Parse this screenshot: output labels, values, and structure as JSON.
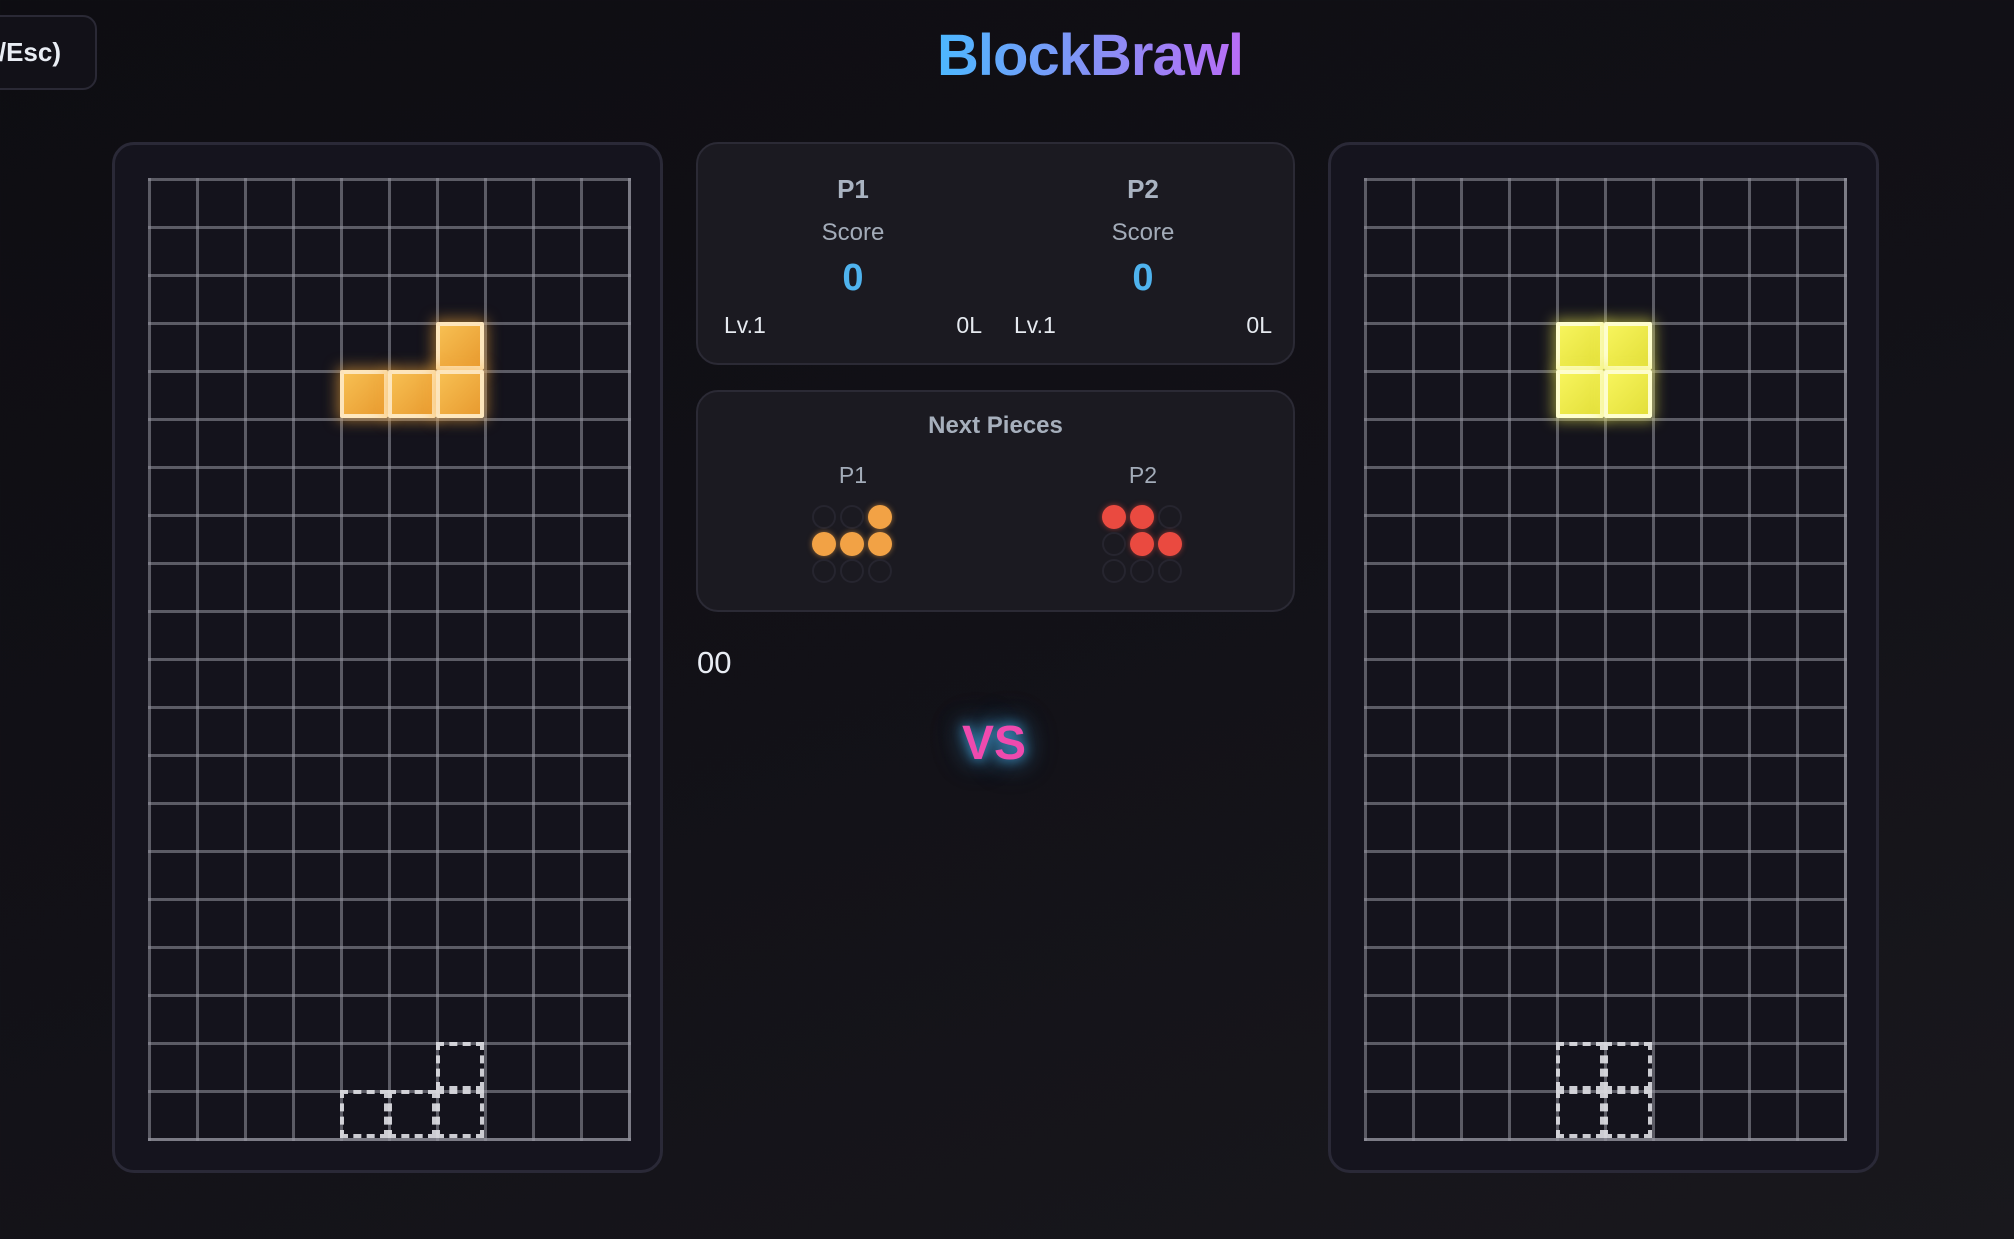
{
  "app": {
    "title": "BlockBrawl"
  },
  "toolbar": {
    "pause_label": "/Esc)"
  },
  "colors": {
    "accent_blue": "#4fb3ee",
    "title_gradient_start": "#4cb8ff",
    "title_gradient_end": "#b96cf6",
    "vs_color": "#ef4aae",
    "vs_glow": "#46aae6",
    "piece_orange": "#f2a245",
    "piece_yellow": "#f3f04a",
    "piece_red": "#ea4a40"
  },
  "scoreboard": {
    "players": [
      {
        "name": "P1",
        "score_label": "Score",
        "score": "0",
        "level": "Lv.1",
        "lines": "0L"
      },
      {
        "name": "P2",
        "score_label": "Score",
        "score": "0",
        "level": "Lv.1",
        "lines": "0L"
      }
    ]
  },
  "next_pieces": {
    "title": "Next Pieces",
    "players": [
      {
        "label": "P1",
        "piece": "L",
        "color": "orange",
        "grid": [
          [
            0,
            0,
            1
          ],
          [
            1,
            1,
            1
          ],
          [
            0,
            0,
            0
          ]
        ]
      },
      {
        "label": "P2",
        "piece": "Z",
        "color": "red",
        "grid": [
          [
            1,
            1,
            0
          ],
          [
            0,
            1,
            1
          ],
          [
            0,
            0,
            0
          ]
        ]
      }
    ]
  },
  "timer": "00",
  "vs_label": "VS",
  "boards": [
    {
      "player": "P1",
      "cols": 10,
      "rows": 20,
      "active_piece": {
        "type": "L",
        "color": "orange",
        "cells": [
          [
            6,
            3
          ],
          [
            4,
            4
          ],
          [
            5,
            4
          ],
          [
            6,
            4
          ]
        ]
      },
      "ghost_piece": {
        "cells": [
          [
            6,
            18
          ],
          [
            4,
            19
          ],
          [
            5,
            19
          ],
          [
            6,
            19
          ]
        ]
      }
    },
    {
      "player": "P2",
      "cols": 10,
      "rows": 20,
      "active_piece": {
        "type": "O",
        "color": "yellow",
        "cells": [
          [
            4,
            3
          ],
          [
            5,
            3
          ],
          [
            4,
            4
          ],
          [
            5,
            4
          ]
        ]
      },
      "ghost_piece": {
        "cells": [
          [
            4,
            18
          ],
          [
            5,
            18
          ],
          [
            4,
            19
          ],
          [
            5,
            19
          ]
        ]
      }
    }
  ]
}
